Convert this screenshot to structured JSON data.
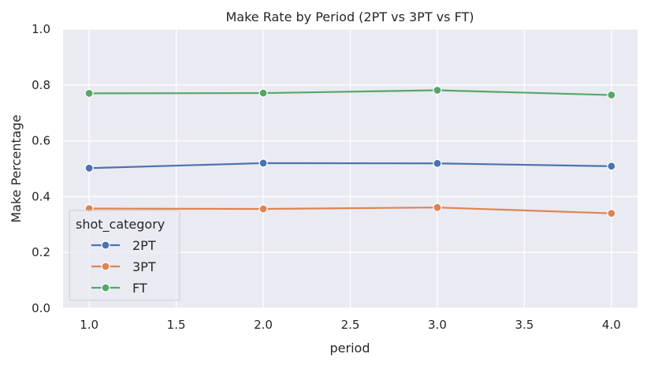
{
  "chart_data": {
    "type": "line",
    "title": "Make Rate by Period (2PT vs 3PT vs FT)",
    "xlabel": "period",
    "ylabel": "Make Percentage",
    "x": [
      1.0,
      2.0,
      3.0,
      4.0
    ],
    "xticks": [
      1.0,
      1.5,
      2.0,
      2.5,
      3.0,
      3.5,
      4.0
    ],
    "xtick_labels": [
      "1.0",
      "1.5",
      "2.0",
      "2.5",
      "3.0",
      "3.5",
      "4.0"
    ],
    "yticks": [
      0.0,
      0.2,
      0.4,
      0.6,
      0.8,
      1.0
    ],
    "ytick_labels": [
      "0.0",
      "0.2",
      "0.4",
      "0.6",
      "0.8",
      "1.0"
    ],
    "xlim": [
      0.85,
      4.15
    ],
    "ylim": [
      0.0,
      1.0
    ],
    "grid": true,
    "legend": {
      "title": "shot_category",
      "placement": "lower-left"
    },
    "series": [
      {
        "name": "2PT",
        "color": "#4c72b0",
        "values": [
          0.502,
          0.52,
          0.519,
          0.509
        ]
      },
      {
        "name": "3PT",
        "color": "#dd8452",
        "values": [
          0.357,
          0.356,
          0.361,
          0.34
        ]
      },
      {
        "name": "FT",
        "color": "#55a868",
        "values": [
          0.77,
          0.771,
          0.781,
          0.764
        ]
      }
    ]
  }
}
